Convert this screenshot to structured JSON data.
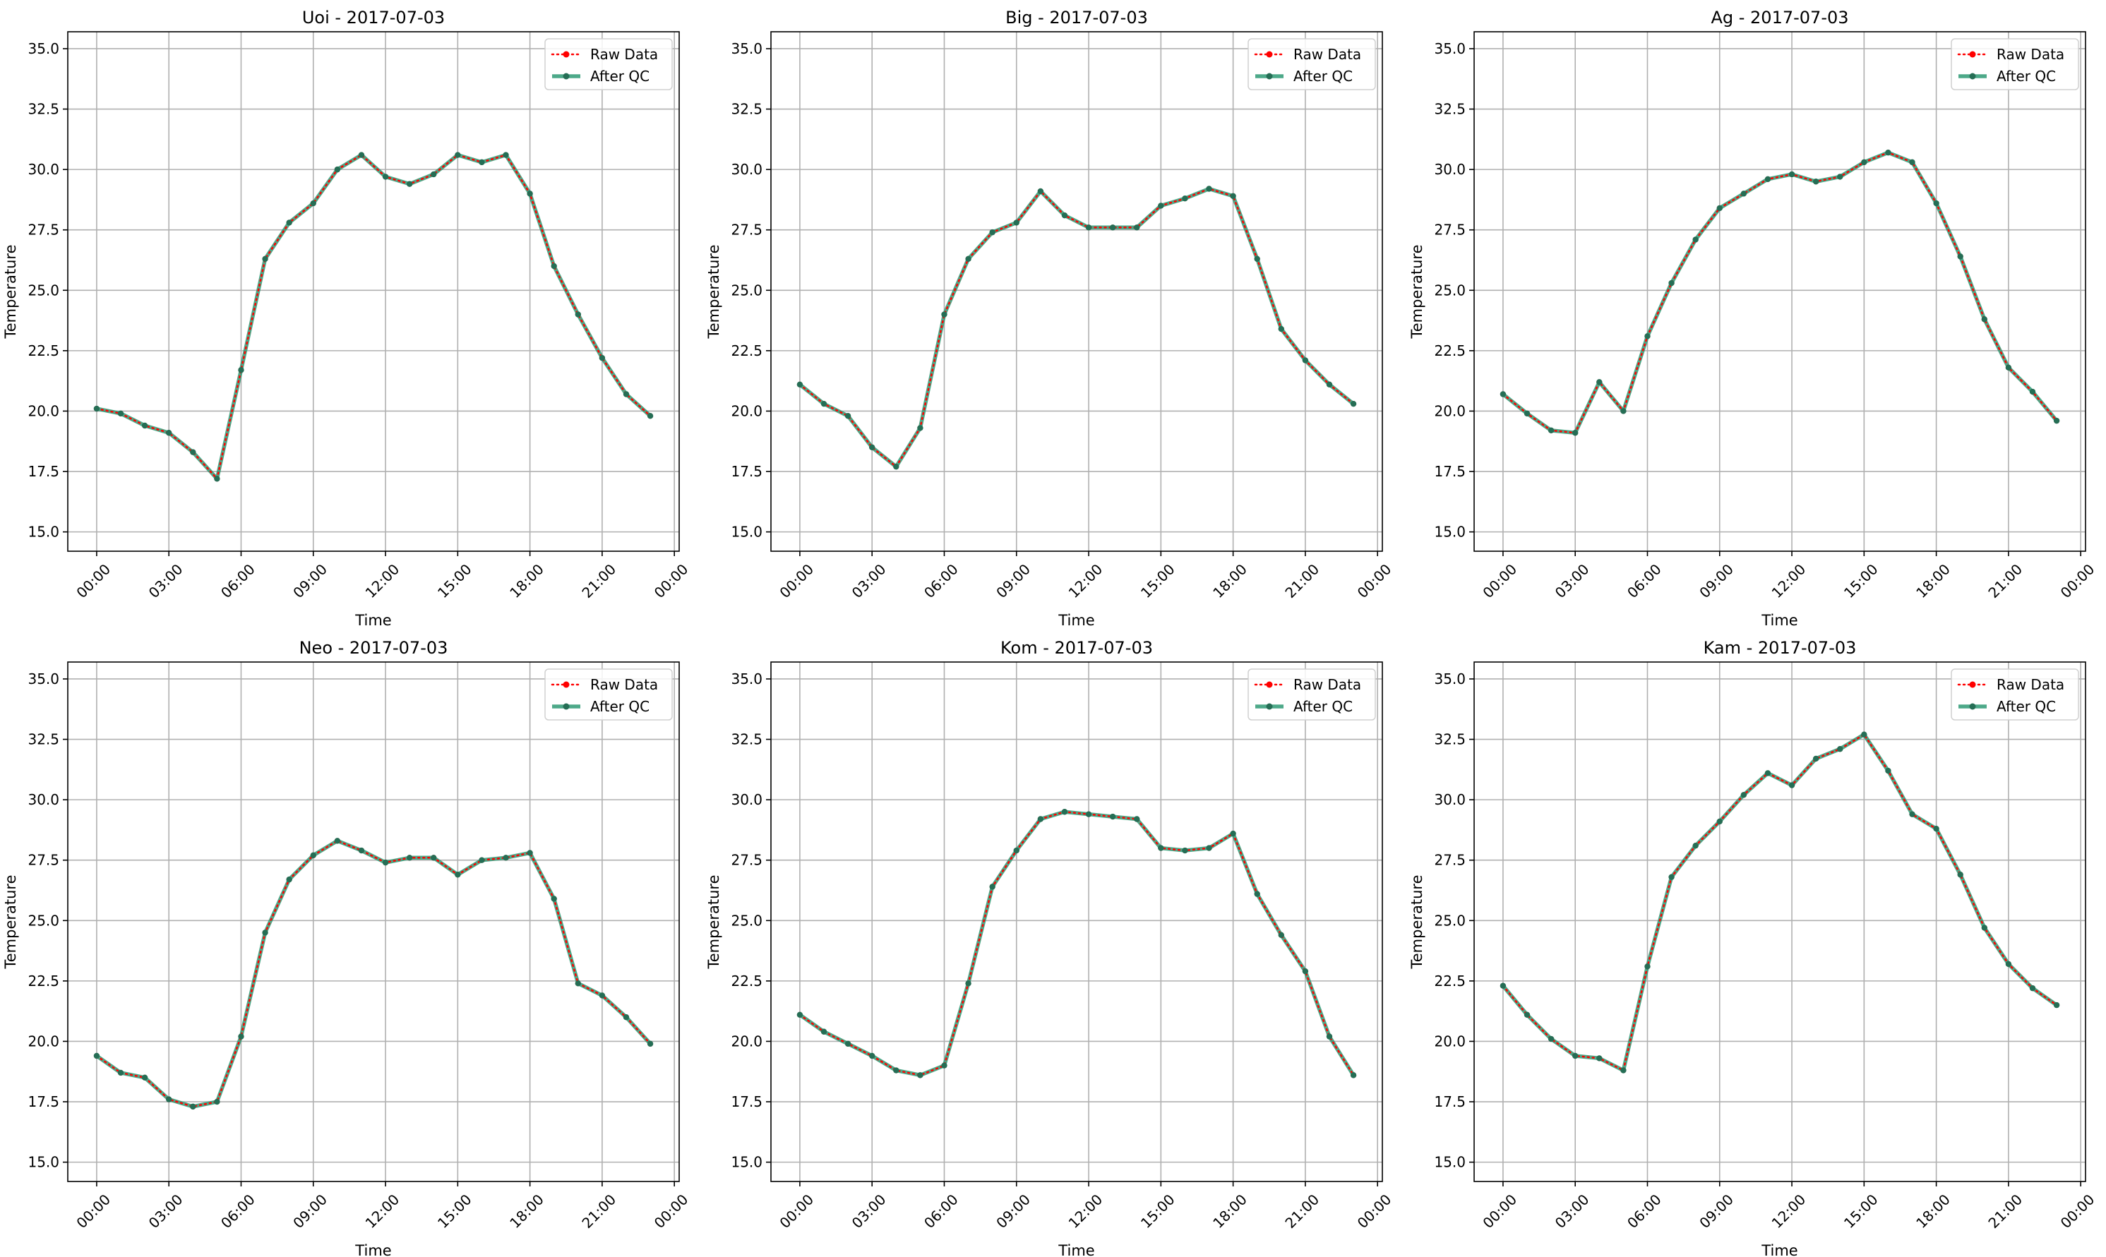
{
  "colors": {
    "raw": "#ff0000",
    "qc": "#2e9a74",
    "qc_marker": "#256e55",
    "grid": "#b0b0b0",
    "axes": "#000000",
    "legend_border": "#d0d0d0"
  },
  "legend": {
    "raw_label": "Raw Data",
    "qc_label": "After QC",
    "placement": "upper right"
  },
  "chart_data": [
    {
      "type": "line",
      "title": "Uoi - 2017-07-03",
      "xlabel": "Time",
      "ylabel": "Temperature",
      "ylim": [
        14.2,
        35.7
      ],
      "xlim": [
        -1.2,
        24.2
      ],
      "yticks": [
        "15.0",
        "17.5",
        "20.0",
        "22.5",
        "25.0",
        "27.5",
        "30.0",
        "32.5",
        "35.0"
      ],
      "xticks": [
        "00:00",
        "03:00",
        "06:00",
        "09:00",
        "12:00",
        "15:00",
        "18:00",
        "21:00",
        "00:00"
      ],
      "grid": true,
      "x_hours": [
        0,
        1,
        2,
        3,
        4,
        5,
        6,
        7,
        8,
        9,
        10,
        11,
        12,
        13,
        14,
        15,
        16,
        17,
        18,
        19,
        20,
        21,
        22,
        23
      ],
      "series": [
        {
          "name": "Raw Data",
          "values": [
            20.1,
            19.9,
            19.4,
            19.1,
            18.3,
            17.2,
            21.7,
            26.3,
            27.8,
            28.6,
            30.0,
            30.6,
            29.7,
            29.4,
            29.8,
            30.6,
            30.3,
            30.6,
            29.0,
            26.0,
            24.0,
            22.2,
            20.7,
            19.8
          ]
        },
        {
          "name": "After QC",
          "values": [
            20.1,
            19.9,
            19.4,
            19.1,
            18.3,
            17.2,
            21.7,
            26.3,
            27.8,
            28.6,
            30.0,
            30.6,
            29.7,
            29.4,
            29.8,
            30.6,
            30.3,
            30.6,
            29.0,
            26.0,
            24.0,
            22.2,
            20.7,
            19.8
          ]
        }
      ]
    },
    {
      "type": "line",
      "title": "Big - 2017-07-03",
      "xlabel": "Time",
      "ylabel": "Temperature",
      "ylim": [
        14.2,
        35.7
      ],
      "xlim": [
        -1.2,
        24.2
      ],
      "yticks": [
        "15.0",
        "17.5",
        "20.0",
        "22.5",
        "25.0",
        "27.5",
        "30.0",
        "32.5",
        "35.0"
      ],
      "xticks": [
        "00:00",
        "03:00",
        "06:00",
        "09:00",
        "12:00",
        "15:00",
        "18:00",
        "21:00",
        "00:00"
      ],
      "grid": true,
      "x_hours": [
        0,
        1,
        2,
        3,
        4,
        5,
        6,
        7,
        8,
        9,
        10,
        11,
        12,
        13,
        14,
        15,
        16,
        17,
        18,
        19,
        20,
        21,
        22,
        23
      ],
      "series": [
        {
          "name": "Raw Data",
          "values": [
            21.1,
            20.3,
            19.8,
            18.5,
            17.7,
            19.3,
            24.0,
            26.3,
            27.4,
            27.8,
            29.1,
            28.1,
            27.6,
            27.6,
            27.6,
            28.5,
            28.8,
            29.2,
            28.9,
            26.3,
            23.4,
            22.1,
            21.1,
            20.3
          ]
        },
        {
          "name": "After QC",
          "values": [
            21.1,
            20.3,
            19.8,
            18.5,
            17.7,
            19.3,
            24.0,
            26.3,
            27.4,
            27.8,
            29.1,
            28.1,
            27.6,
            27.6,
            27.6,
            28.5,
            28.8,
            29.2,
            28.9,
            26.3,
            23.4,
            22.1,
            21.1,
            20.3
          ]
        }
      ]
    },
    {
      "type": "line",
      "title": "Ag - 2017-07-03",
      "xlabel": "Time",
      "ylabel": "Temperature",
      "ylim": [
        14.2,
        35.7
      ],
      "xlim": [
        -1.2,
        24.2
      ],
      "yticks": [
        "15.0",
        "17.5",
        "20.0",
        "22.5",
        "25.0",
        "27.5",
        "30.0",
        "32.5",
        "35.0"
      ],
      "xticks": [
        "00:00",
        "03:00",
        "06:00",
        "09:00",
        "12:00",
        "15:00",
        "18:00",
        "21:00",
        "00:00"
      ],
      "grid": true,
      "x_hours": [
        0,
        1,
        2,
        3,
        4,
        5,
        6,
        7,
        8,
        9,
        10,
        11,
        12,
        13,
        14,
        15,
        16,
        17,
        18,
        19,
        20,
        21,
        22,
        23
      ],
      "series": [
        {
          "name": "Raw Data",
          "values": [
            20.7,
            19.9,
            19.2,
            19.1,
            21.2,
            20.0,
            23.1,
            25.3,
            27.1,
            28.4,
            29.0,
            29.6,
            29.8,
            29.5,
            29.7,
            30.3,
            30.7,
            30.3,
            28.6,
            26.4,
            23.8,
            21.8,
            20.8,
            19.6
          ]
        },
        {
          "name": "After QC",
          "values": [
            20.7,
            19.9,
            19.2,
            19.1,
            21.2,
            20.0,
            23.1,
            25.3,
            27.1,
            28.4,
            29.0,
            29.6,
            29.8,
            29.5,
            29.7,
            30.3,
            30.7,
            30.3,
            28.6,
            26.4,
            23.8,
            21.8,
            20.8,
            19.6
          ]
        }
      ]
    },
    {
      "type": "line",
      "title": "Neo - 2017-07-03",
      "xlabel": "Time",
      "ylabel": "Temperature",
      "ylim": [
        14.2,
        35.7
      ],
      "xlim": [
        -1.2,
        24.2
      ],
      "yticks": [
        "15.0",
        "17.5",
        "20.0",
        "22.5",
        "25.0",
        "27.5",
        "30.0",
        "32.5",
        "35.0"
      ],
      "xticks": [
        "00:00",
        "03:00",
        "06:00",
        "09:00",
        "12:00",
        "15:00",
        "18:00",
        "21:00",
        "00:00"
      ],
      "grid": true,
      "x_hours": [
        0,
        1,
        2,
        3,
        4,
        5,
        6,
        7,
        8,
        9,
        10,
        11,
        12,
        13,
        14,
        15,
        16,
        17,
        18,
        19,
        20,
        21,
        22,
        23
      ],
      "series": [
        {
          "name": "Raw Data",
          "values": [
            19.4,
            18.7,
            18.5,
            17.6,
            17.3,
            17.5,
            20.2,
            24.5,
            26.7,
            27.7,
            28.3,
            27.9,
            27.4,
            27.6,
            27.6,
            26.9,
            27.5,
            27.6,
            27.8,
            25.9,
            22.4,
            21.9,
            21.0,
            19.9
          ]
        },
        {
          "name": "After QC",
          "values": [
            19.4,
            18.7,
            18.5,
            17.6,
            17.3,
            17.5,
            20.2,
            24.5,
            26.7,
            27.7,
            28.3,
            27.9,
            27.4,
            27.6,
            27.6,
            26.9,
            27.5,
            27.6,
            27.8,
            25.9,
            22.4,
            21.9,
            21.0,
            19.9
          ]
        }
      ]
    },
    {
      "type": "line",
      "title": "Kom - 2017-07-03",
      "xlabel": "Time",
      "ylabel": "Temperature",
      "ylim": [
        14.2,
        35.7
      ],
      "xlim": [
        -1.2,
        24.2
      ],
      "yticks": [
        "15.0",
        "17.5",
        "20.0",
        "22.5",
        "25.0",
        "27.5",
        "30.0",
        "32.5",
        "35.0"
      ],
      "xticks": [
        "00:00",
        "03:00",
        "06:00",
        "09:00",
        "12:00",
        "15:00",
        "18:00",
        "21:00",
        "00:00"
      ],
      "grid": true,
      "x_hours": [
        0,
        1,
        2,
        3,
        4,
        5,
        6,
        7,
        8,
        9,
        10,
        11,
        12,
        13,
        14,
        15,
        16,
        17,
        18,
        19,
        20,
        21,
        22,
        23
      ],
      "series": [
        {
          "name": "Raw Data",
          "values": [
            21.1,
            20.4,
            19.9,
            19.4,
            18.8,
            18.6,
            19.0,
            22.4,
            26.4,
            27.9,
            29.2,
            29.5,
            29.4,
            29.3,
            29.2,
            28.0,
            27.9,
            28.0,
            28.6,
            26.1,
            24.4,
            22.9,
            20.2,
            18.6
          ]
        },
        {
          "name": "After QC",
          "values": [
            21.1,
            20.4,
            19.9,
            19.4,
            18.8,
            18.6,
            19.0,
            22.4,
            26.4,
            27.9,
            29.2,
            29.5,
            29.4,
            29.3,
            29.2,
            28.0,
            27.9,
            28.0,
            28.6,
            26.1,
            24.4,
            22.9,
            20.2,
            18.6
          ]
        }
      ]
    },
    {
      "type": "line",
      "title": "Kam - 2017-07-03",
      "xlabel": "Time",
      "ylabel": "Temperature",
      "ylim": [
        14.2,
        35.7
      ],
      "xlim": [
        -1.2,
        24.2
      ],
      "yticks": [
        "15.0",
        "17.5",
        "20.0",
        "22.5",
        "25.0",
        "27.5",
        "30.0",
        "32.5",
        "35.0"
      ],
      "xticks": [
        "00:00",
        "03:00",
        "06:00",
        "09:00",
        "12:00",
        "15:00",
        "18:00",
        "21:00",
        "00:00"
      ],
      "grid": true,
      "x_hours": [
        0,
        1,
        2,
        3,
        4,
        5,
        6,
        7,
        8,
        9,
        10,
        11,
        12,
        13,
        14,
        15,
        16,
        17,
        18,
        19,
        20,
        21,
        22,
        23
      ],
      "series": [
        {
          "name": "Raw Data",
          "values": [
            22.3,
            21.1,
            20.1,
            19.4,
            19.3,
            18.8,
            23.1,
            26.8,
            28.1,
            29.1,
            30.2,
            31.1,
            30.6,
            31.7,
            32.1,
            32.7,
            31.2,
            29.4,
            28.8,
            26.9,
            24.7,
            23.2,
            22.2,
            21.5
          ]
        },
        {
          "name": "After QC",
          "values": [
            22.3,
            21.1,
            20.1,
            19.4,
            19.3,
            18.8,
            23.1,
            26.8,
            28.1,
            29.1,
            30.2,
            31.1,
            30.6,
            31.7,
            32.1,
            32.7,
            31.2,
            29.4,
            28.8,
            26.9,
            24.7,
            23.2,
            22.2,
            21.5
          ]
        }
      ]
    }
  ]
}
